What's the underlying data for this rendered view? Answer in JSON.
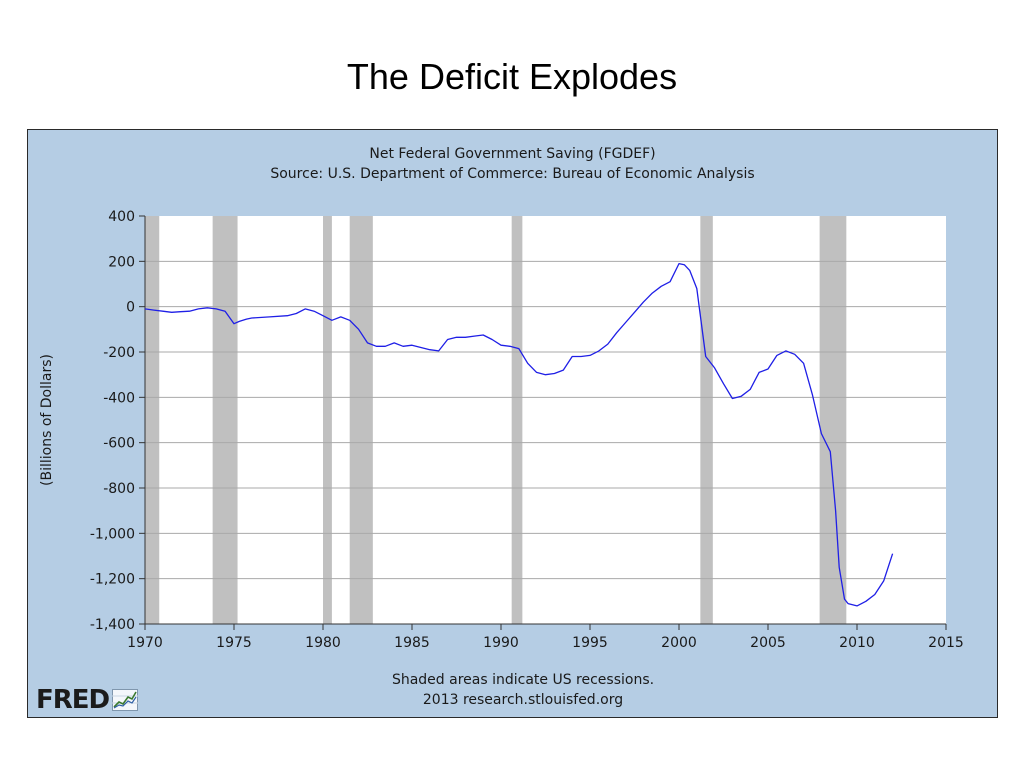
{
  "slide_title": "The Deficit Explodes",
  "chart_data": {
    "type": "line",
    "title": "Net Federal Government Saving (FGDEF)",
    "subtitle": "Source: U.S. Department of Commerce: Bureau of Economic Analysis",
    "ylabel": "(Billions of Dollars)",
    "xlabel": "",
    "xlim": [
      1970,
      2015
    ],
    "ylim": [
      -1400,
      400
    ],
    "x_ticks": [
      1970,
      1975,
      1980,
      1985,
      1990,
      1995,
      2000,
      2005,
      2010,
      2015
    ],
    "x_tick_labels": [
      "1970",
      "1975",
      "1980",
      "1985",
      "1990",
      "1995",
      "2000",
      "2005",
      "2010",
      "2015"
    ],
    "y_ticks": [
      400,
      200,
      0,
      -200,
      -400,
      -600,
      -800,
      -1000,
      -1200,
      -1400
    ],
    "y_tick_labels": [
      "400",
      "200",
      "0",
      "-200",
      "-400",
      "-600",
      "-800",
      "-1,000",
      "-1,200",
      "-1,400"
    ],
    "grid": true,
    "line_color": "#1f1fe6",
    "plot_background": "#ffffff",
    "recession_color": "#c0c0c0",
    "recessions": [
      [
        1970.0,
        1970.8
      ],
      [
        1973.8,
        1975.2
      ],
      [
        1980.0,
        1980.5
      ],
      [
        1981.5,
        1982.8
      ],
      [
        1990.6,
        1991.2
      ],
      [
        2001.2,
        2001.9
      ],
      [
        2007.9,
        2009.4
      ]
    ],
    "series": [
      {
        "x": [
          1970.0,
          1970.5,
          1971.0,
          1971.5,
          1972.0,
          1972.5,
          1973.0,
          1973.5,
          1974.0,
          1974.5,
          1975.0,
          1975.3,
          1975.7,
          1976.0,
          1977.0,
          1978.0,
          1978.5,
          1979.0,
          1979.5,
          1980.0,
          1980.5,
          1981.0,
          1981.5,
          1982.0,
          1982.5,
          1983.0,
          1983.5,
          1984.0,
          1984.5,
          1985.0,
          1985.5,
          1986.0,
          1986.5,
          1987.0,
          1987.5,
          1988.0,
          1988.5,
          1989.0,
          1989.5,
          1990.0,
          1990.5,
          1991.0,
          1991.5,
          1992.0,
          1992.5,
          1993.0,
          1993.5,
          1994.0,
          1994.5,
          1995.0,
          1995.5,
          1996.0,
          1996.5,
          1997.0,
          1997.5,
          1998.0,
          1998.5,
          1999.0,
          1999.5,
          2000.0,
          2000.3,
          2000.6,
          2001.0,
          2001.5,
          2002.0,
          2002.5,
          2003.0,
          2003.5,
          2004.0,
          2004.5,
          2005.0,
          2005.5,
          2006.0,
          2006.5,
          2007.0,
          2007.5,
          2008.0,
          2008.5,
          2008.8,
          2009.0,
          2009.3,
          2009.5,
          2010.0,
          2010.5,
          2011.0,
          2011.5,
          2012.0
        ],
        "y": [
          -10,
          -15,
          -20,
          -25,
          -22,
          -20,
          -10,
          -5,
          -10,
          -20,
          -75,
          -65,
          -55,
          -50,
          -45,
          -40,
          -30,
          -10,
          -20,
          -40,
          -60,
          -45,
          -60,
          -100,
          -160,
          -175,
          -175,
          -160,
          -175,
          -170,
          -180,
          -190,
          -195,
          -145,
          -135,
          -135,
          -130,
          -125,
          -145,
          -170,
          -175,
          -185,
          -250,
          -290,
          -300,
          -295,
          -280,
          -220,
          -220,
          -215,
          -195,
          -165,
          -115,
          -70,
          -25,
          20,
          60,
          90,
          110,
          190,
          185,
          160,
          80,
          -220,
          -270,
          -340,
          -405,
          -395,
          -365,
          -290,
          -275,
          -215,
          -195,
          -210,
          -250,
          -390,
          -560,
          -640,
          -900,
          -1150,
          -1290,
          -1310,
          -1320,
          -1300,
          -1270,
          -1210,
          -1090
        ]
      }
    ],
    "notes": [
      "Shaded areas indicate US recessions.",
      "2013 research.stlouisfed.org"
    ],
    "logo_text": "FRED"
  }
}
